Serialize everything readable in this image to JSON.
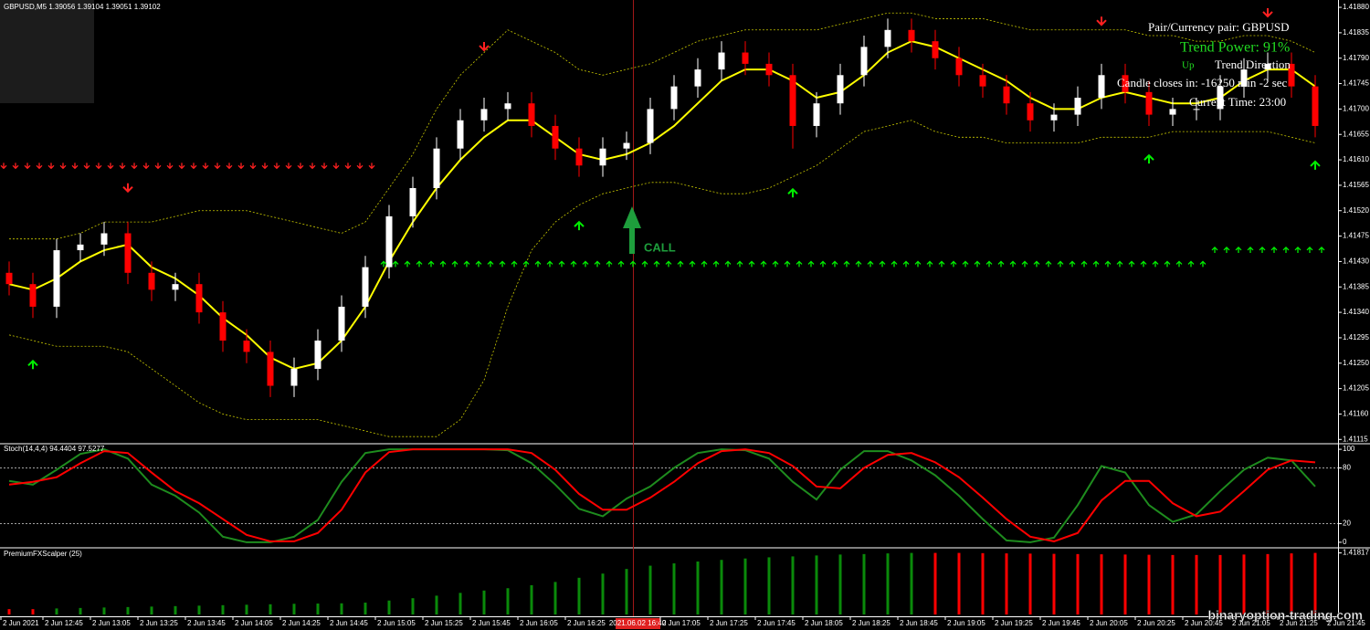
{
  "chart_data": [
    {
      "type": "candlestick",
      "title": "GBPUSD,M5 1.39056 1.39104 1.39051 1.39102",
      "open": [
        1.4141,
        1.4139,
        1.4135,
        1.4145,
        1.4146,
        1.4148,
        1.4141,
        1.4138,
        1.4139,
        1.4134,
        1.4129,
        1.4127,
        1.4121,
        1.4124,
        1.4129,
        1.4135,
        1.4142,
        1.4151,
        1.4156,
        1.4163,
        1.4168,
        1.417,
        1.4171,
        1.4167,
        1.4163,
        1.416,
        1.4163,
        1.4164,
        1.417,
        1.4174,
        1.4177,
        1.418,
        1.4178,
        1.4176,
        1.4167,
        1.4171,
        1.4176,
        1.4181,
        1.4184,
        1.4182,
        1.4179,
        1.4176,
        1.4174,
        1.4171,
        1.4168,
        1.4169,
        1.4172,
        1.4176,
        1.4173,
        1.4169,
        1.417,
        1.417,
        1.4174,
        1.4177,
        1.4178,
        1.4174
      ],
      "high": [
        1.4143,
        1.4141,
        1.4147,
        1.4148,
        1.415,
        1.415,
        1.4143,
        1.4141,
        1.4141,
        1.4136,
        1.4131,
        1.4129,
        1.4126,
        1.4131,
        1.4137,
        1.4144,
        1.4153,
        1.4158,
        1.4165,
        1.417,
        1.4172,
        1.4173,
        1.4173,
        1.4169,
        1.4165,
        1.4165,
        1.4166,
        1.4172,
        1.4176,
        1.4179,
        1.4182,
        1.4182,
        1.418,
        1.4178,
        1.4173,
        1.4178,
        1.4183,
        1.4186,
        1.4186,
        1.4184,
        1.4181,
        1.4178,
        1.4176,
        1.4173,
        1.4171,
        1.4174,
        1.4178,
        1.4178,
        1.4175,
        1.4172,
        1.4172,
        1.4176,
        1.4179,
        1.418,
        1.418,
        1.4176
      ],
      "low": [
        1.4137,
        1.4133,
        1.4133,
        1.4143,
        1.4144,
        1.4139,
        1.4136,
        1.4136,
        1.4132,
        1.4127,
        1.4125,
        1.4119,
        1.4119,
        1.4122,
        1.4127,
        1.4133,
        1.414,
        1.4149,
        1.4154,
        1.4161,
        1.4166,
        1.4168,
        1.4165,
        1.4161,
        1.4158,
        1.4158,
        1.4161,
        1.4162,
        1.4168,
        1.4172,
        1.4175,
        1.4176,
        1.4174,
        1.4163,
        1.4165,
        1.4169,
        1.4174,
        1.4179,
        1.418,
        1.4177,
        1.4174,
        1.4172,
        1.4169,
        1.4166,
        1.4166,
        1.4167,
        1.417,
        1.4171,
        1.4167,
        1.4167,
        1.4168,
        1.4168,
        1.4172,
        1.4175,
        1.4172,
        1.4165
      ],
      "close": [
        1.4139,
        1.4135,
        1.4145,
        1.4146,
        1.4148,
        1.4141,
        1.4138,
        1.4139,
        1.4134,
        1.4129,
        1.4127,
        1.4121,
        1.4124,
        1.4129,
        1.4135,
        1.4142,
        1.4151,
        1.4156,
        1.4163,
        1.4168,
        1.417,
        1.4171,
        1.4167,
        1.4163,
        1.416,
        1.4163,
        1.4164,
        1.417,
        1.4174,
        1.4177,
        1.418,
        1.4178,
        1.4176,
        1.4167,
        1.4171,
        1.4176,
        1.4181,
        1.4184,
        1.4182,
        1.4179,
        1.4176,
        1.4174,
        1.4171,
        1.4168,
        1.4169,
        1.4172,
        1.4176,
        1.4173,
        1.4169,
        1.417,
        1.417,
        1.4174,
        1.4177,
        1.4178,
        1.4174,
        1.4167
      ],
      "up_color": "#ffffff",
      "down_color": "#ff0000",
      "ylim": [
        1.41109,
        1.41893
      ],
      "yticks": [
        {
          "value": 1.4188,
          "label": "1.41880"
        },
        1.41835,
        {
          "value": 1.4179,
          "label": "1.41790"
        },
        1.41745,
        {
          "value": 1.417,
          "label": "1.41700"
        },
        1.41655,
        {
          "value": 1.4161,
          "label": "1.41610"
        },
        1.41565,
        {
          "value": 1.4152,
          "label": "1.41520"
        },
        1.41475,
        {
          "value": 1.4143,
          "label": "1.41430"
        },
        1.41385,
        {
          "value": 1.4134,
          "label": "1.41340"
        },
        1.41295,
        {
          "value": 1.4125,
          "label": "1.41250"
        },
        1.41205,
        {
          "value": 1.4116,
          "label": "1.41160"
        },
        1.41115
      ],
      "lines": [
        {
          "color": "#ffff00",
          "dashed": false,
          "values": [
            1.4139,
            1.4138,
            1.414,
            1.4143,
            1.4145,
            1.4146,
            1.4142,
            1.414,
            1.4137,
            1.4133,
            1.413,
            1.4126,
            1.4124,
            1.4125,
            1.4129,
            1.4135,
            1.4143,
            1.415,
            1.4156,
            1.4161,
            1.4165,
            1.4168,
            1.4168,
            1.4165,
            1.4162,
            1.4161,
            1.4162,
            1.4164,
            1.4167,
            1.4171,
            1.4175,
            1.4177,
            1.4177,
            1.4175,
            1.4172,
            1.4173,
            1.4176,
            1.418,
            1.4182,
            1.4181,
            1.4179,
            1.4177,
            1.4175,
            1.4172,
            1.417,
            1.417,
            1.4172,
            1.4173,
            1.4172,
            1.4171,
            1.4171,
            1.4172,
            1.4175,
            1.4177,
            1.4177,
            1.4174
          ]
        },
        {
          "color": "#c8c800",
          "dashed": true,
          "values": [
            1.4147,
            1.4147,
            1.4147,
            1.4148,
            1.415,
            1.415,
            1.415,
            1.4151,
            1.4152,
            1.4152,
            1.4152,
            1.4151,
            1.415,
            1.4149,
            1.4148,
            1.415,
            1.4156,
            1.4162,
            1.417,
            1.4176,
            1.418,
            1.4184,
            1.4182,
            1.418,
            1.4177,
            1.4176,
            1.4177,
            1.4178,
            1.418,
            1.4182,
            1.4183,
            1.4184,
            1.4184,
            1.4184,
            1.4184,
            1.4185,
            1.4186,
            1.4187,
            1.4187,
            1.4186,
            1.4186,
            1.4186,
            1.4185,
            1.4184,
            1.4184,
            1.4184,
            1.4184,
            1.4184,
            1.4183,
            1.4183,
            1.4182,
            1.4182,
            1.4183,
            1.4183,
            1.4182,
            1.418
          ]
        },
        {
          "color": "#c8c800",
          "dashed": true,
          "values": [
            1.413,
            1.4129,
            1.4128,
            1.4128,
            1.4128,
            1.4127,
            1.4124,
            1.4121,
            1.4118,
            1.4116,
            1.4115,
            1.4115,
            1.4115,
            1.4115,
            1.4114,
            1.4113,
            1.4112,
            1.4112,
            1.4112,
            1.4115,
            1.4122,
            1.4135,
            1.4145,
            1.415,
            1.4153,
            1.4155,
            1.4156,
            1.4157,
            1.4157,
            1.4156,
            1.4155,
            1.4155,
            1.4156,
            1.4158,
            1.416,
            1.4163,
            1.4166,
            1.4167,
            1.4168,
            1.4166,
            1.4165,
            1.4165,
            1.4164,
            1.4164,
            1.4164,
            1.4164,
            1.4165,
            1.4165,
            1.4165,
            1.4166,
            1.4166,
            1.4166,
            1.4166,
            1.4166,
            1.4165,
            1.4164
          ]
        }
      ],
      "sell_arrows": {
        "color": "#ff2020",
        "values": [
          1.41595,
          1.41595,
          1.41595,
          1.41595,
          1.41595,
          1.41595,
          1.41595,
          1.41595,
          1.41595,
          1.41595,
          1.41595,
          1.41595,
          1.41595,
          1.41595,
          1.41595,
          1.41595,
          null,
          null,
          null,
          null,
          null,
          null,
          null,
          null,
          null,
          null,
          null,
          null,
          null,
          null,
          null,
          null,
          null,
          null,
          null,
          null,
          null,
          null,
          null,
          null,
          null,
          null,
          null,
          null,
          null,
          null,
          null,
          null,
          null,
          null,
          null,
          null,
          null,
          null,
          null,
          null
        ]
      },
      "buy_arrows": {
        "color": "#00ee00",
        "values": [
          null,
          null,
          null,
          null,
          null,
          null,
          null,
          null,
          null,
          null,
          null,
          null,
          null,
          null,
          null,
          null,
          1.4143,
          1.4143,
          1.4143,
          1.4143,
          1.4143,
          1.4143,
          1.4143,
          1.4143,
          1.4143,
          1.4143,
          1.4143,
          1.4143,
          1.4143,
          1.4143,
          1.4143,
          1.4143,
          1.4143,
          1.4143,
          1.4143,
          1.4143,
          1.4143,
          1.4143,
          1.4143,
          1.4143,
          1.4143,
          1.4143,
          1.4143,
          1.4143,
          1.4143,
          1.4143,
          1.4143,
          1.4143,
          1.4143,
          1.4143,
          1.4143,
          1.41455,
          1.41455,
          1.41455,
          1.41455,
          1.41455
        ]
      },
      "sell_signals": {
        "color": "#ff2020",
        "candles": [
          5,
          20,
          46,
          53
        ],
        "values": [
          1.41554,
          1.41804,
          1.41849,
          1.41864
        ]
      },
      "buy_signals": {
        "color": "#00ee00",
        "candles": [
          1,
          24,
          33,
          48,
          55
        ],
        "values": [
          1.41254,
          1.415,
          1.41558,
          1.41618,
          1.41607
        ]
      },
      "annotation": "CALL",
      "annotation_color": "#1e9e3c",
      "cursor_label": "2021.06.02 16:40"
    },
    {
      "type": "line",
      "title": "Stoch(14,4,4) 94.4404 97.5277",
      "series": [
        {
          "color": "#1e8c1e",
          "values": [
            66,
            62,
            78,
            95,
            100,
            90,
            62,
            50,
            32,
            6,
            0,
            0,
            6,
            24,
            65,
            96,
            100,
            100,
            100,
            100,
            100,
            99,
            85,
            62,
            36,
            28,
            47,
            60,
            80,
            96,
            100,
            99,
            90,
            65,
            46,
            78,
            98,
            98,
            88,
            72,
            50,
            25,
            2,
            0,
            5,
            40,
            82,
            75,
            40,
            22,
            30,
            55,
            78,
            91,
            88,
            60
          ]
        },
        {
          "color": "#ff0000",
          "values": [
            62,
            65,
            70,
            85,
            98,
            96,
            75,
            55,
            42,
            25,
            8,
            1,
            1,
            10,
            35,
            75,
            97,
            100,
            100,
            100,
            100,
            100,
            96,
            78,
            52,
            35,
            35,
            48,
            65,
            85,
            98,
            100,
            96,
            82,
            60,
            58,
            80,
            94,
            96,
            86,
            70,
            48,
            25,
            6,
            1,
            10,
            45,
            66,
            66,
            42,
            28,
            33,
            55,
            78,
            88,
            86
          ]
        }
      ],
      "ylim": [
        -4,
        105
      ],
      "yticks": [
        100,
        80,
        20,
        0
      ],
      "levels": [
        80,
        20
      ]
    },
    {
      "type": "bar",
      "title": "PremiumFXScalper (25)",
      "series": [
        {
          "color": "#0a8a0a",
          "values": [
            null,
            null,
            1.41578,
            1.4158,
            1.41582,
            1.41584,
            1.41586,
            1.41588,
            1.4159,
            1.41592,
            1.41594,
            1.41596,
            1.41598,
            1.41599,
            1.416,
            1.41603,
            1.41612,
            1.41622,
            1.41633,
            1.41645,
            1.41655,
            1.41665,
            1.41678,
            1.41692,
            1.4171,
            1.41728,
            1.41748,
            1.41762,
            1.41772,
            1.4178,
            1.41787,
            1.41793,
            1.41798,
            1.41802,
            1.41806,
            1.4181,
            1.41812,
            1.41815,
            1.41817,
            null,
            null,
            null,
            null,
            null,
            null,
            null,
            null,
            null,
            null,
            null,
            null,
            null,
            null,
            null,
            null,
            null
          ]
        },
        {
          "color": "#ff0000",
          "values": [
            1.41575,
            1.41575,
            null,
            null,
            null,
            null,
            null,
            null,
            null,
            null,
            null,
            null,
            null,
            null,
            null,
            null,
            null,
            null,
            null,
            null,
            null,
            null,
            null,
            null,
            null,
            null,
            null,
            null,
            null,
            null,
            null,
            null,
            null,
            null,
            null,
            null,
            null,
            null,
            null,
            1.41817,
            1.41817,
            1.41816,
            1.41815,
            1.41814,
            1.41813,
            1.41812,
            1.41811,
            1.4181,
            1.41809,
            1.41808,
            1.41808,
            1.41808,
            1.4181,
            1.41812,
            1.41815,
            1.41817
          ]
        }
      ],
      "ylim": [
        1.41552,
        1.41835
      ],
      "yticks": [
        1.41817
      ]
    }
  ],
  "time_axis": {
    "labels": [
      "2 Jun 2021",
      "2 Jun 12:45",
      "2 Jun 13:05",
      "2 Jun 13:25",
      "2 Jun 13:45",
      "2 Jun 14:05",
      "2 Jun 14:25",
      "2 Jun 14:45",
      "2 Jun 15:05",
      "2 Jun 15:25",
      "2 Jun 15:45",
      "2 Jun 16:05",
      "2 Jun 16:25",
      null,
      "2 Jun 17:05",
      "2 Jun 17:25",
      "2 Jun 17:45",
      "2 Jun 18:05",
      "2 Jun 18:25",
      "2 Jun 18:45",
      "2 Jun 19:05",
      "2 Jun 19:25",
      "2 Jun 19:45",
      "2 Jun 20:05",
      "2 Jun 20:25",
      "2 Jun 20:45",
      "2 Jun 21:05",
      "2 Jun 21:25",
      "2 Jun 21:45"
    ]
  },
  "overlay": {
    "pair": "Pair/Currency pair: GBPUSD",
    "trend_power": "Trend Power: 91%",
    "direction_value": "Up",
    "direction_label": "Trend Direction",
    "candle_close": "Candle closes in: -16250 min -2 sec",
    "current_time": "Current Time: 23:00"
  },
  "watermark": "binaryoption-trading.com"
}
